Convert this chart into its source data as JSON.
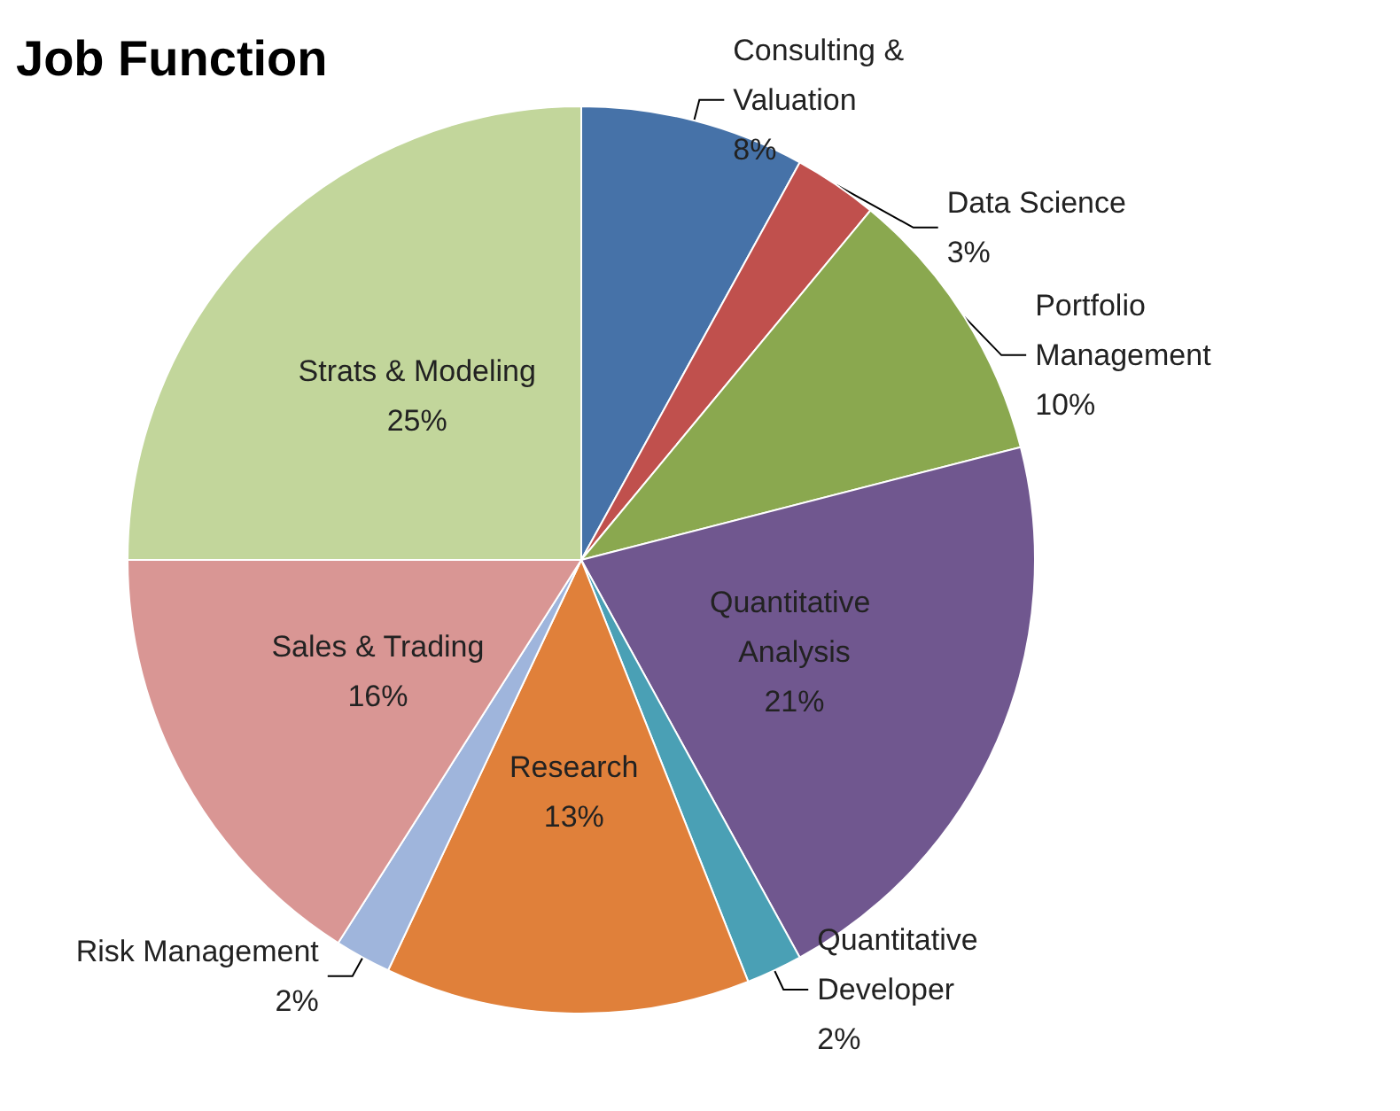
{
  "chart_data": {
    "type": "pie",
    "title": "Job Function",
    "categories": [
      "Consulting & Valuation",
      "Data Science",
      "Portfolio Management",
      "Quantitative Analysis",
      "Quantitative Developer",
      "Research",
      "Risk Management",
      "Sales & Trading",
      "Strats & Modeling"
    ],
    "values": [
      8,
      3,
      10,
      21,
      2,
      13,
      2,
      16,
      25
    ],
    "value_labels": [
      "8%",
      "3%",
      "10%",
      "21%",
      "2%",
      "13%",
      "2%",
      "16%",
      "25%"
    ],
    "colors": [
      "#4672a8",
      "#c0504d",
      "#8aa84f",
      "#70578f",
      "#4aa0b5",
      "#e0803a",
      "#9fb5dc",
      "#d99694",
      "#c2d69b"
    ],
    "legend": false
  }
}
